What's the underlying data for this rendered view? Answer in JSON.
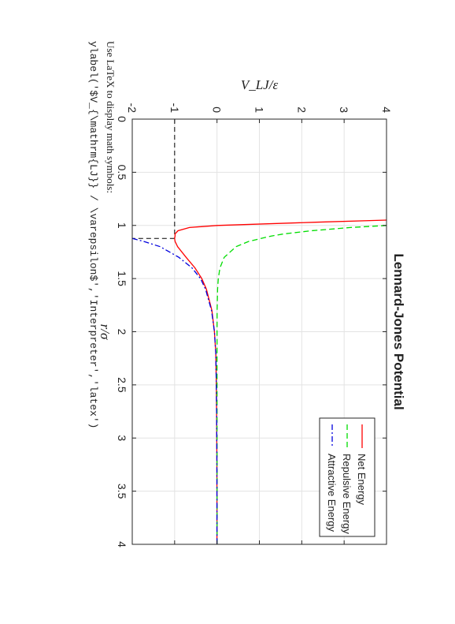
{
  "caption": "Use LaTeX to display math symbols:",
  "code_line": "ylabel('$V_{\\mathrm{LJ}} / \\varepsilon$','Interpreter','latex')",
  "chart_data": {
    "type": "line",
    "title": "Lennard-Jones Potential",
    "xlabel": "r/σ",
    "ylabel": "V_LJ/ε",
    "xlim": [
      0,
      4
    ],
    "ylim": [
      -2,
      4
    ],
    "xticks": [
      0,
      0.5,
      1,
      1.5,
      2,
      2.5,
      3,
      3.5,
      4
    ],
    "xtick_labels": [
      "0",
      "0.5",
      "1",
      "1.5",
      "2",
      "2.5",
      "3",
      "3.5",
      "4"
    ],
    "yticks": [
      -2,
      -1,
      0,
      1,
      2,
      3,
      4
    ],
    "ytick_labels": [
      "-2",
      "-1",
      "0",
      "1",
      "2",
      "3",
      "4"
    ],
    "grid": true,
    "legend_position": "top-right",
    "series": [
      {
        "name": "Net Energy",
        "color": "#ff0000",
        "dash": "solid",
        "x": [
          0.95,
          0.97,
          1.0,
          1.02,
          1.05,
          1.08,
          1.1,
          1.122,
          1.15,
          1.2,
          1.3,
          1.4,
          1.5,
          1.6,
          1.8,
          2.0,
          2.2,
          2.5,
          2.8,
          3.2,
          3.6,
          4.0
        ],
        "y": [
          4.0,
          2.33,
          0.0,
          -0.65,
          -0.92,
          -0.99,
          -0.99,
          -1.0,
          -0.99,
          -0.93,
          -0.73,
          -0.52,
          -0.36,
          -0.25,
          -0.12,
          -0.06,
          -0.03,
          -0.016,
          -0.008,
          -0.004,
          -0.002,
          -0.001
        ]
      },
      {
        "name": "Repulsive Energy",
        "color": "#00dd00",
        "dash": "dashed",
        "x": [
          1.0,
          1.02,
          1.05,
          1.08,
          1.1,
          1.15,
          1.2,
          1.3,
          1.4,
          1.5,
          1.6,
          1.8,
          2.0,
          2.5,
          3.0,
          4.0
        ],
        "y": [
          4.0,
          3.15,
          2.23,
          1.58,
          1.28,
          0.75,
          0.45,
          0.17,
          0.07,
          0.03,
          0.014,
          0.003,
          0.001,
          0.0,
          0.0,
          0.0
        ]
      },
      {
        "name": "Attractive Energy",
        "color": "#0000dd",
        "dash": "dashdot",
        "x": [
          1.122,
          1.15,
          1.2,
          1.3,
          1.4,
          1.5,
          1.6,
          1.8,
          2.0,
          2.2,
          2.5,
          2.8,
          3.2,
          3.6,
          4.0
        ],
        "y": [
          -2.0,
          -1.73,
          -1.34,
          -0.9,
          -0.59,
          -0.39,
          -0.27,
          -0.13,
          -0.06,
          -0.03,
          -0.016,
          -0.008,
          -0.004,
          -0.002,
          -0.001
        ]
      }
    ],
    "reference_lines": [
      {
        "x": [
          0,
          1.122
        ],
        "y": [
          -1,
          -1
        ]
      },
      {
        "x": [
          1.122,
          1.122
        ],
        "y": [
          -1,
          -2
        ]
      }
    ]
  }
}
